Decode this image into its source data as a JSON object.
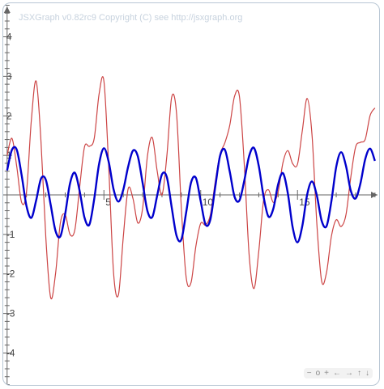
{
  "copyright": "JSXGraph v0.82rc9 Copyright (C) see http://jsxgraph.org",
  "navigation": {
    "zoom_out": "−",
    "reset": "o",
    "zoom_in": "+",
    "left": "←",
    "right": "→",
    "up": "↑",
    "down": "↓"
  },
  "chart_data": {
    "type": "line",
    "xlim": [
      -0.2,
      19.3
    ],
    "ylim": [
      -4.85,
      4.85
    ],
    "x_ticks": [
      5,
      10,
      15
    ],
    "y_ticks": [
      -4,
      -3,
      -2,
      -1,
      1,
      2,
      3,
      4
    ],
    "x_tick_labels": [
      "5",
      "10",
      "15"
    ],
    "y_tick_labels": [
      "-4",
      "-3",
      "-2",
      "-1",
      "1",
      "2",
      "3",
      "4"
    ],
    "grid": false,
    "series": [
      {
        "color": "#cc4444",
        "points": [
          [
            0,
            1
          ],
          [
            0.25,
            1.43
          ],
          [
            0.5,
            0.71
          ],
          [
            0.75,
            -0.19
          ],
          [
            1,
            0.07
          ],
          [
            1.25,
            1.88
          ],
          [
            1.5,
            2.88
          ],
          [
            1.75,
            1.35
          ],
          [
            2,
            -1.08
          ],
          [
            2.25,
            -2.6
          ],
          [
            2.5,
            -2.0
          ],
          [
            2.75,
            -0.71
          ],
          [
            3,
            -0.5
          ],
          [
            3.25,
            -1.0
          ],
          [
            3.5,
            -0.88
          ],
          [
            3.75,
            0.21
          ],
          [
            4,
            1.22
          ],
          [
            4.25,
            1.23
          ],
          [
            4.5,
            1.43
          ],
          [
            4.75,
            2.55
          ],
          [
            5,
            2.88
          ],
          [
            5.25,
            0.69
          ],
          [
            5.5,
            -1.98
          ],
          [
            5.75,
            -2.53
          ],
          [
            6,
            -1.07
          ],
          [
            6.25,
            0.15
          ],
          [
            6.5,
            -0.09
          ],
          [
            6.75,
            -0.71
          ],
          [
            7,
            -0.34
          ],
          [
            7.25,
            0.99
          ],
          [
            7.5,
            1.45
          ],
          [
            7.75,
            0.61
          ],
          [
            8,
            0.0
          ],
          [
            8.25,
            0.98
          ],
          [
            8.5,
            2.47
          ],
          [
            8.75,
            2.07
          ],
          [
            9,
            -0.34
          ],
          [
            9.25,
            -2.09
          ],
          [
            9.5,
            -2.22
          ],
          [
            9.75,
            -1.3
          ],
          [
            10,
            -0.72
          ],
          [
            10.25,
            -0.76
          ],
          [
            10.5,
            -0.5
          ],
          [
            10.75,
            0.33
          ],
          [
            11,
            1.03
          ],
          [
            11.25,
            1.32
          ],
          [
            11.5,
            1.76
          ],
          [
            11.75,
            2.5
          ],
          [
            12,
            2.49
          ],
          [
            12.25,
            0.77
          ],
          [
            12.5,
            -1.51
          ],
          [
            12.75,
            -2.37
          ],
          [
            13,
            -1.42
          ],
          [
            13.25,
            -0.13
          ],
          [
            13.5,
            0.13
          ],
          [
            13.75,
            -0.19
          ],
          [
            14,
            0.08
          ],
          [
            14.25,
            0.82
          ],
          [
            14.5,
            1.12
          ],
          [
            14.75,
            0.79
          ],
          [
            15,
            0.78
          ],
          [
            15.25,
            1.63
          ],
          [
            15.5,
            2.44
          ],
          [
            15.75,
            1.51
          ],
          [
            16,
            -0.74
          ],
          [
            16.25,
            -2.19
          ],
          [
            16.5,
            -1.96
          ],
          [
            16.75,
            -1.05
          ],
          [
            17,
            -0.63
          ],
          [
            17.25,
            -0.8
          ],
          [
            17.5,
            -0.51
          ],
          [
            17.75,
            0.44
          ],
          [
            18,
            1.21
          ],
          [
            18.25,
            1.33
          ],
          [
            18.5,
            1.41
          ],
          [
            18.75,
            2.01
          ],
          [
            19,
            2.2
          ]
        ]
      },
      {
        "color": "#0000cc",
        "points": [
          [
            0,
            0.62
          ],
          [
            0.25,
            1.14
          ],
          [
            0.5,
            1.14
          ],
          [
            0.75,
            0.5
          ],
          [
            1,
            -0.28
          ],
          [
            1.25,
            -0.58
          ],
          [
            1.5,
            -0.14
          ],
          [
            1.75,
            0.41
          ],
          [
            2,
            0.38
          ],
          [
            2.25,
            -0.25
          ],
          [
            2.5,
            -0.91
          ],
          [
            2.75,
            -1.05
          ],
          [
            3,
            -0.48
          ],
          [
            3.25,
            0.29
          ],
          [
            3.5,
            0.56
          ],
          [
            3.75,
            0.09
          ],
          [
            4,
            -0.58
          ],
          [
            4.25,
            -0.75
          ],
          [
            4.5,
            -0.1
          ],
          [
            4.75,
            0.78
          ],
          [
            5,
            1.18
          ],
          [
            5.25,
            0.83
          ],
          [
            5.5,
            0.14
          ],
          [
            5.75,
            -0.17
          ],
          [
            6,
            0.13
          ],
          [
            6.25,
            0.71
          ],
          [
            6.5,
            1.12
          ],
          [
            6.75,
            0.98
          ],
          [
            7,
            0.3
          ],
          [
            7.25,
            -0.41
          ],
          [
            7.5,
            -0.56
          ],
          [
            7.75,
            -0.02
          ],
          [
            8,
            0.52
          ],
          [
            8.25,
            0.45
          ],
          [
            8.5,
            -0.31
          ],
          [
            8.75,
            -1.03
          ],
          [
            9,
            -1.13
          ],
          [
            9.25,
            -0.44
          ],
          [
            9.5,
            0.31
          ],
          [
            9.75,
            0.43
          ],
          [
            10,
            -0.16
          ],
          [
            10.25,
            -0.75
          ],
          [
            10.5,
            -0.62
          ],
          [
            10.75,
            0.2
          ],
          [
            11,
            0.99
          ],
          [
            11.25,
            1.14
          ],
          [
            11.5,
            0.59
          ],
          [
            11.75,
            -0.05
          ],
          [
            12,
            -0.14
          ],
          [
            12.25,
            0.36
          ],
          [
            12.5,
            0.98
          ],
          [
            12.75,
            1.19
          ],
          [
            13,
            0.73
          ],
          [
            13.25,
            -0.05
          ],
          [
            13.5,
            -0.55
          ],
          [
            13.75,
            -0.35
          ],
          [
            14,
            0.27
          ],
          [
            14.25,
            0.55
          ],
          [
            14.5,
            0.04
          ],
          [
            14.75,
            -0.82
          ],
          [
            15,
            -1.2
          ],
          [
            15.25,
            -0.78
          ],
          [
            15.5,
            0.01
          ],
          [
            15.75,
            0.34
          ],
          [
            16,
            -0.02
          ],
          [
            16.25,
            -0.66
          ],
          [
            16.5,
            -0.79
          ],
          [
            16.75,
            -0.16
          ],
          [
            17,
            0.71
          ],
          [
            17.25,
            1.08
          ],
          [
            17.5,
            0.74
          ],
          [
            17.75,
            0.11
          ],
          [
            18,
            -0.09
          ],
          [
            18.25,
            0.29
          ],
          [
            18.5,
            0.91
          ],
          [
            18.75,
            1.17
          ],
          [
            19,
            0.86
          ]
        ]
      }
    ]
  }
}
